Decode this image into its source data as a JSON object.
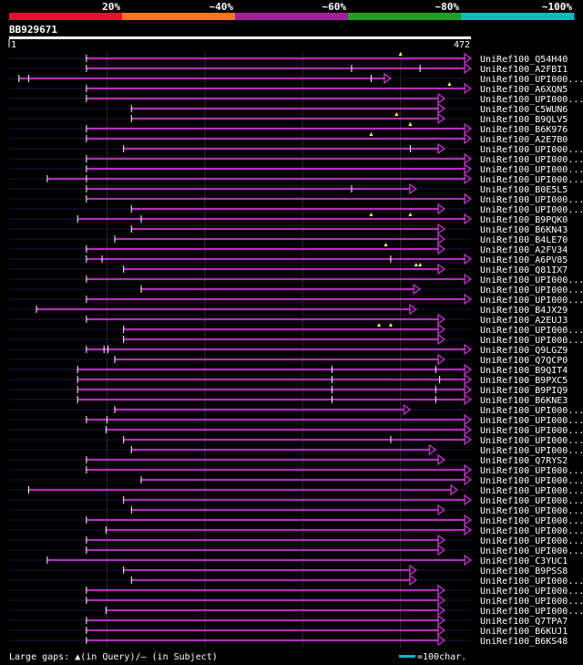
{
  "scale": {
    "labels": [
      "20%",
      "~40%",
      "~60%",
      "~80%",
      "~100%"
    ],
    "colors": [
      "#e8102f",
      "#f07820",
      "#a0209c",
      "#20a020",
      "#10b8c0"
    ]
  },
  "query": {
    "id": "BB929671",
    "start_label": "1",
    "end_label": "472",
    "length": 472
  },
  "hit_color": "#b030b8",
  "gridlines": [
    100,
    200,
    300,
    400
  ],
  "hits": [
    {
      "label": "UniRef100_Q54H40",
      "start": 79,
      "end": 472,
      "qgaps": [
        400
      ],
      "sgaps": []
    },
    {
      "label": "UniRef100_A2FBI1",
      "start": 79,
      "end": 472,
      "qgaps": [],
      "sgaps": [
        350,
        420
      ]
    },
    {
      "label": "UniRef100_UPI000...",
      "start": 10,
      "end": 390,
      "qgaps": [],
      "sgaps": [
        20,
        370
      ]
    },
    {
      "label": "UniRef100_A6XQN5",
      "start": 79,
      "end": 472,
      "qgaps": [
        450
      ],
      "sgaps": []
    },
    {
      "label": "UniRef100_UPI000...",
      "start": 79,
      "end": 445,
      "qgaps": [],
      "sgaps": []
    },
    {
      "label": "UniRef100_C5WUN6",
      "start": 125,
      "end": 445,
      "qgaps": [],
      "sgaps": []
    },
    {
      "label": "UniRef100_B9QLV5",
      "start": 125,
      "end": 445,
      "qgaps": [
        396
      ],
      "sgaps": []
    },
    {
      "label": "UniRef100_B6K976",
      "start": 79,
      "end": 472,
      "qgaps": [
        410
      ],
      "sgaps": []
    },
    {
      "label": "UniRef100_A2E7B0",
      "start": 79,
      "end": 472,
      "qgaps": [
        370
      ],
      "sgaps": []
    },
    {
      "label": "UniRef100_UPI000...",
      "start": 117,
      "end": 445,
      "qgaps": [],
      "sgaps": [
        410
      ]
    },
    {
      "label": "UniRef100_UPI000...",
      "start": 79,
      "end": 472,
      "qgaps": [],
      "sgaps": []
    },
    {
      "label": "UniRef100_UPI000...",
      "start": 79,
      "end": 472,
      "qgaps": [],
      "sgaps": []
    },
    {
      "label": "UniRef100_UPI000...",
      "start": 39,
      "end": 472,
      "qgaps": [],
      "sgaps": [
        79
      ]
    },
    {
      "label": "UniRef100_B0E5L5",
      "start": 79,
      "end": 416,
      "qgaps": [],
      "sgaps": [
        350
      ]
    },
    {
      "label": "UniRef100_UPI000...",
      "start": 79,
      "end": 472,
      "qgaps": [],
      "sgaps": []
    },
    {
      "label": "UniRef100_UPI000...",
      "start": 125,
      "end": 445,
      "qgaps": [],
      "sgaps": []
    },
    {
      "label": "UniRef100_B9PQK0",
      "start": 70,
      "end": 472,
      "qgaps": [
        370,
        410
      ],
      "sgaps": [
        135
      ]
    },
    {
      "label": "UniRef100_B6KN43",
      "start": 125,
      "end": 445,
      "qgaps": [],
      "sgaps": []
    },
    {
      "label": "UniRef100_B4LE70",
      "start": 108,
      "end": 445,
      "qgaps": [],
      "sgaps": []
    },
    {
      "label": "UniRef100_A2FV34",
      "start": 79,
      "end": 445,
      "qgaps": [
        385
      ],
      "sgaps": []
    },
    {
      "label": "UniRef100_A6PV85",
      "start": 79,
      "end": 472,
      "qgaps": [],
      "sgaps": [
        95,
        390
      ]
    },
    {
      "label": "UniRef100_Q81IX7",
      "start": 117,
      "end": 445,
      "qgaps": [
        416,
        420
      ],
      "sgaps": []
    },
    {
      "label": "UniRef100_UPI000...",
      "start": 79,
      "end": 472,
      "qgaps": [],
      "sgaps": []
    },
    {
      "label": "UniRef100_UPI000...",
      "start": 135,
      "end": 420,
      "qgaps": [],
      "sgaps": []
    },
    {
      "label": "UniRef100_UPI000...",
      "start": 79,
      "end": 472,
      "qgaps": [],
      "sgaps": []
    },
    {
      "label": "UniRef100_B4JX29",
      "start": 28,
      "end": 416,
      "qgaps": [],
      "sgaps": []
    },
    {
      "label": "UniRef100_A2EUJ3",
      "start": 79,
      "end": 445,
      "qgaps": [],
      "sgaps": []
    },
    {
      "label": "UniRef100_UPI000...",
      "start": 117,
      "end": 445,
      "qgaps": [
        378,
        390
      ],
      "sgaps": []
    },
    {
      "label": "UniRef100_UPI000...",
      "start": 117,
      "end": 445,
      "qgaps": [],
      "sgaps": []
    },
    {
      "label": "UniRef100_Q9LGZ9",
      "start": 79,
      "end": 472,
      "qgaps": [],
      "sgaps": [
        97,
        101
      ]
    },
    {
      "label": "UniRef100_Q7QCP0",
      "start": 108,
      "end": 445,
      "qgaps": [],
      "sgaps": []
    },
    {
      "label": "UniRef100_B9QIT4",
      "start": 70,
      "end": 472,
      "qgaps": [],
      "sgaps": [
        330,
        436
      ]
    },
    {
      "label": "UniRef100_B9PXC5",
      "start": 70,
      "end": 472,
      "qgaps": [],
      "sgaps": [
        330,
        440
      ]
    },
    {
      "label": "UniRef100_B9PIQ9",
      "start": 70,
      "end": 472,
      "qgaps": [],
      "sgaps": [
        330,
        436
      ]
    },
    {
      "label": "UniRef100_B6KNE3",
      "start": 70,
      "end": 472,
      "qgaps": [],
      "sgaps": [
        330,
        436
      ]
    },
    {
      "label": "UniRef100_UPI000...",
      "start": 108,
      "end": 410,
      "qgaps": [],
      "sgaps": []
    },
    {
      "label": "UniRef100_UPI000...",
      "start": 79,
      "end": 472,
      "qgaps": [],
      "sgaps": [
        100
      ]
    },
    {
      "label": "UniRef100_UPI000...",
      "start": 99,
      "end": 472,
      "qgaps": [],
      "sgaps": []
    },
    {
      "label": "UniRef100_UPI000...",
      "start": 117,
      "end": 472,
      "qgaps": [],
      "sgaps": [
        390
      ]
    },
    {
      "label": "UniRef100_UPI000...",
      "start": 125,
      "end": 436,
      "qgaps": [],
      "sgaps": []
    },
    {
      "label": "UniRef100_Q7RYS2",
      "start": 79,
      "end": 445,
      "qgaps": [],
      "sgaps": []
    },
    {
      "label": "UniRef100_UPI000...",
      "start": 79,
      "end": 472,
      "qgaps": [],
      "sgaps": []
    },
    {
      "label": "UniRef100_UPI000...",
      "start": 135,
      "end": 472,
      "qgaps": [],
      "sgaps": []
    },
    {
      "label": "UniRef100_UPI000...",
      "start": 20,
      "end": 458,
      "qgaps": [],
      "sgaps": []
    },
    {
      "label": "UniRef100_UPI000...",
      "start": 117,
      "end": 472,
      "qgaps": [],
      "sgaps": []
    },
    {
      "label": "UniRef100_UPI000...",
      "start": 125,
      "end": 445,
      "qgaps": [],
      "sgaps": []
    },
    {
      "label": "UniRef100_UPI000...",
      "start": 79,
      "end": 472,
      "qgaps": [],
      "sgaps": []
    },
    {
      "label": "UniRef100_UPI000...",
      "start": 99,
      "end": 472,
      "qgaps": [],
      "sgaps": []
    },
    {
      "label": "UniRef100_UPI000...",
      "start": 79,
      "end": 445,
      "qgaps": [],
      "sgaps": []
    },
    {
      "label": "UniRef100_UPI000...",
      "start": 79,
      "end": 445,
      "qgaps": [],
      "sgaps": []
    },
    {
      "label": "UniRef100_C3YUC1",
      "start": 39,
      "end": 472,
      "qgaps": [],
      "sgaps": []
    },
    {
      "label": "UniRef100_B9PSS8",
      "start": 117,
      "end": 416,
      "qgaps": [],
      "sgaps": []
    },
    {
      "label": "UniRef100_UPI000...",
      "start": 125,
      "end": 416,
      "qgaps": [],
      "sgaps": []
    },
    {
      "label": "UniRef100_UPI000...",
      "start": 79,
      "end": 445,
      "qgaps": [],
      "sgaps": []
    },
    {
      "label": "UniRef100_UPI000...",
      "start": 79,
      "end": 445,
      "qgaps": [],
      "sgaps": []
    },
    {
      "label": "UniRef100_UPI000...",
      "start": 99,
      "end": 445,
      "qgaps": [],
      "sgaps": []
    },
    {
      "label": "UniRef100_Q7TPA7",
      "start": 79,
      "end": 445,
      "qgaps": [],
      "sgaps": []
    },
    {
      "label": "UniRef100_B6KUJ1",
      "start": 79,
      "end": 445,
      "qgaps": [],
      "sgaps": []
    },
    {
      "label": "UniRef100_B6KS48",
      "start": 79,
      "end": 445,
      "qgaps": [],
      "sgaps": []
    }
  ],
  "legend": {
    "gaps_text": "Large gaps: ▲(in Query)/– (in Subject)",
    "scale_text": "=100char."
  }
}
